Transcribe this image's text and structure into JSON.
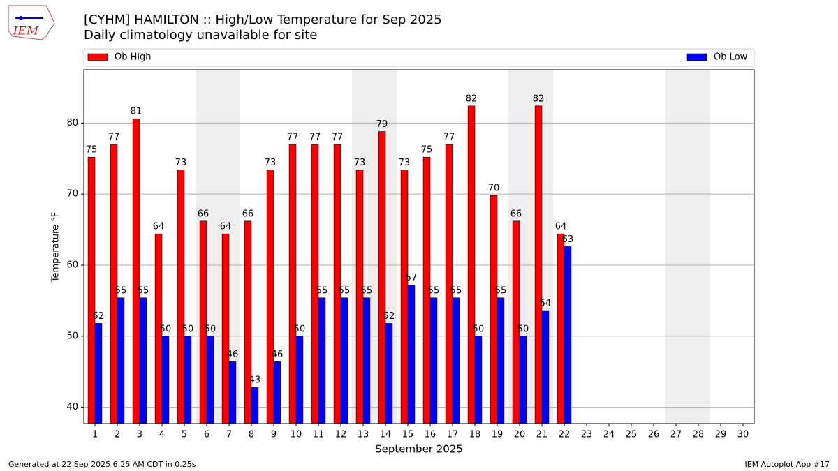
{
  "chart_data": {
    "type": "bar",
    "title": "[CYHM] HAMILTON :: High/Low Temperature for Sep 2025",
    "subtitle": "Daily climatology unavailable for site",
    "logo_text": "IEM",
    "ylabel": "Temperature °F",
    "xlabel": "September 2025",
    "footer_left": "Generated at 22 Sep 2025 6:25 AM CDT in 0.25s",
    "footer_right": "IEM Autoplot App #17",
    "x": [
      1,
      2,
      3,
      4,
      5,
      6,
      7,
      8,
      9,
      10,
      11,
      12,
      13,
      14,
      15,
      16,
      17,
      18,
      19,
      20,
      21,
      22,
      23,
      24,
      25,
      26,
      27,
      28,
      29,
      30
    ],
    "xlim": [
      0.5,
      30.5
    ],
    "xticks": [
      1,
      2,
      3,
      4,
      5,
      6,
      7,
      8,
      9,
      10,
      11,
      12,
      13,
      14,
      15,
      16,
      17,
      18,
      19,
      20,
      21,
      22,
      23,
      24,
      25,
      26,
      27,
      28,
      29,
      30
    ],
    "ylim": [
      37.7,
      87.5
    ],
    "yticks": [
      40,
      50,
      60,
      70,
      80
    ],
    "grid": true,
    "shaded_days": [
      6,
      7,
      13,
      14,
      20,
      21,
      27,
      28
    ],
    "shade_color": "#eeeeee",
    "series": [
      {
        "name": "Ob High",
        "color": "#ff0000",
        "values": [
          75.2,
          77,
          80.6,
          64.4,
          73.4,
          66.2,
          64.4,
          66.2,
          73.4,
          77,
          77,
          77,
          73.4,
          78.8,
          73.4,
          75.2,
          77,
          82.4,
          69.8,
          66.2,
          82.4,
          64.4,
          null,
          null,
          null,
          null,
          null,
          null,
          null,
          null
        ],
        "value_labels": [
          "75",
          "77",
          "81",
          "64",
          "73",
          "66",
          "64",
          "66",
          "73",
          "77",
          "77",
          "77",
          "73",
          "79",
          "73",
          "75",
          "77",
          "82",
          "70",
          "66",
          "82",
          "64",
          null,
          null,
          null,
          null,
          null,
          null,
          null,
          null
        ]
      },
      {
        "name": "Ob Low",
        "color": "#0000ff",
        "values": [
          51.8,
          55.4,
          55.4,
          50,
          50,
          50,
          46.4,
          42.8,
          46.4,
          50,
          55.4,
          55.4,
          55.4,
          51.8,
          57.2,
          55.4,
          55.4,
          50,
          55.4,
          50,
          53.6,
          62.6,
          null,
          null,
          null,
          null,
          null,
          null,
          null,
          null
        ],
        "value_labels": [
          "52",
          "55",
          "55",
          "50",
          "50",
          "50",
          "46",
          "43",
          "46",
          "50",
          "55",
          "55",
          "55",
          "52",
          "57",
          "55",
          "55",
          "50",
          "55",
          "50",
          "54",
          "63",
          null,
          null,
          null,
          null,
          null,
          null,
          null,
          null
        ]
      }
    ]
  }
}
